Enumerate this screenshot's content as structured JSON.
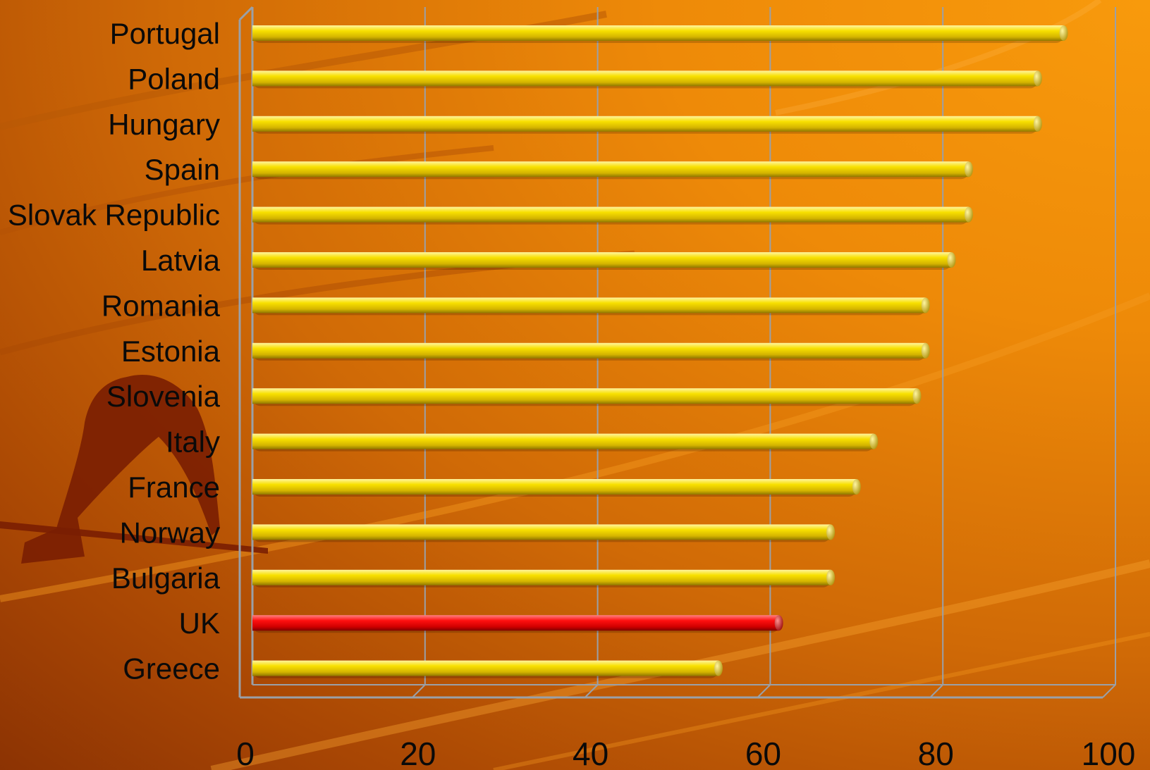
{
  "chart_data": {
    "type": "bar",
    "orientation": "horizontal",
    "categories": [
      "Portugal",
      "Poland",
      "Hungary",
      "Spain",
      "Slovak Republic",
      "Latvia",
      "Romania",
      "Estonia",
      "Slovenia",
      "Italy",
      "France",
      "Norway",
      "Bulgaria",
      "UK",
      "Greece"
    ],
    "values": [
      94,
      91,
      91,
      83,
      83,
      81,
      78,
      78,
      77,
      72,
      70,
      67,
      67,
      61,
      54
    ],
    "highlight": "UK",
    "colors": {
      "bar": "#f5d800",
      "highlight": "#ee0000",
      "grid": "#9aa0a8"
    },
    "title": "",
    "xlabel": "",
    "ylabel": "",
    "xlim": [
      0,
      100
    ],
    "xticks": [
      0,
      20,
      40,
      60,
      80,
      100
    ],
    "grid": true,
    "legend": "none"
  }
}
